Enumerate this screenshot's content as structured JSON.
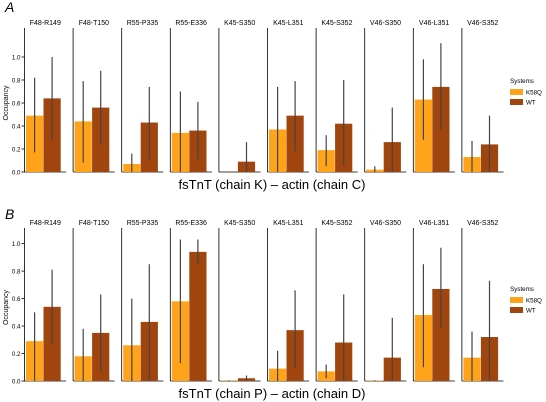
{
  "colors": {
    "K58Q": "#FFA31A",
    "WT": "#A0450E",
    "error_bar": "#444444",
    "axis": "#000000"
  },
  "chart_data": [
    {
      "type": "bar",
      "panel_label": "A",
      "xlabel": "fsTnT (chain K) – actin (chain C)",
      "ylabel": "Occupancy",
      "ylim": [
        0,
        1.2
      ],
      "yticks": [
        "0.0",
        "0.2",
        "0.4",
        "0.6",
        "0.8",
        "1.0"
      ],
      "grid": false,
      "legend_title": "Systems",
      "legend_position": "right",
      "categories": [
        "F48-R149",
        "F48-T150",
        "R55-P335",
        "R55-E336",
        "K45-S350",
        "K45-L351",
        "K45-S352",
        "V46-S350",
        "V46-L351",
        "V46-S352"
      ],
      "series": [
        {
          "name": "K58Q",
          "values": [
            0.49,
            0.44,
            0.07,
            0.34,
            0.0,
            0.37,
            0.19,
            0.02,
            0.63,
            0.13
          ],
          "err_low": [
            0.17,
            0.08,
            0.0,
            0.0,
            0.0,
            0.0,
            0.05,
            0.0,
            0.28,
            0.0
          ],
          "err_high": [
            0.82,
            0.79,
            0.16,
            0.7,
            0.0,
            0.74,
            0.32,
            0.05,
            0.98,
            0.27
          ]
        },
        {
          "name": "WT",
          "values": [
            0.64,
            0.56,
            0.43,
            0.36,
            0.09,
            0.49,
            0.42,
            0.26,
            0.74,
            0.24
          ],
          "err_low": [
            0.28,
            0.24,
            0.11,
            0.11,
            0.0,
            0.18,
            0.05,
            0.0,
            0.37,
            0.0
          ],
          "err_high": [
            1.0,
            0.88,
            0.74,
            0.61,
            0.26,
            0.79,
            0.8,
            0.56,
            1.12,
            0.49
          ]
        }
      ]
    },
    {
      "type": "bar",
      "panel_label": "B",
      "xlabel": "fsTnT (chain P) – actin (chain D)",
      "ylabel": "Occupancy",
      "ylim": [
        0,
        1.07
      ],
      "yticks": [
        "0.0",
        "0.2",
        "0.4",
        "0.6",
        "0.8",
        "1.0"
      ],
      "grid": false,
      "legend_title": "Systems",
      "legend_position": "right",
      "categories": [
        "F48-R149",
        "F48-T150",
        "R55-P335",
        "R55-E336",
        "K45-S350",
        "K45-L351",
        "K45-S352",
        "V46-S350",
        "V46-L351",
        "V46-S352"
      ],
      "series": [
        {
          "name": "K58Q",
          "values": [
            0.29,
            0.18,
            0.26,
            0.58,
            0.003,
            0.09,
            0.07,
            0.003,
            0.48,
            0.17
          ],
          "err_low": [
            0.0,
            0.0,
            0.0,
            0.13,
            0.0,
            0.0,
            0.02,
            0.0,
            0.1,
            0.0
          ],
          "err_high": [
            0.5,
            0.38,
            0.6,
            1.03,
            0.006,
            0.22,
            0.12,
            0.006,
            0.85,
            0.36
          ]
        },
        {
          "name": "WT",
          "values": [
            0.54,
            0.35,
            0.43,
            0.94,
            0.02,
            0.37,
            0.28,
            0.17,
            0.67,
            0.32
          ],
          "err_low": [
            0.27,
            0.07,
            0.0,
            0.85,
            0.0,
            0.09,
            0.0,
            0.0,
            0.38,
            0.0
          ],
          "err_high": [
            0.81,
            0.63,
            0.85,
            1.03,
            0.04,
            0.66,
            0.63,
            0.46,
            0.97,
            0.73
          ]
        }
      ]
    }
  ]
}
